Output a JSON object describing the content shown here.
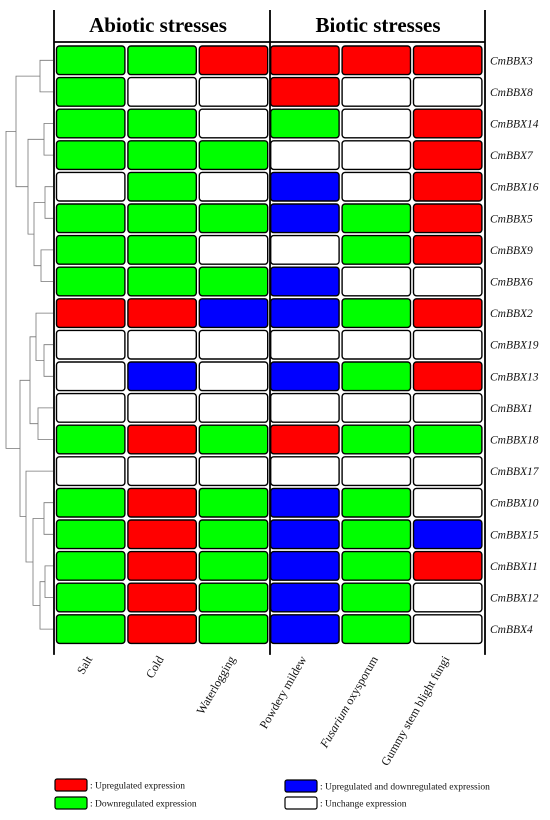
{
  "chart_data": {
    "type": "heatmap",
    "group_headers": [
      "Abiotic stresses",
      "Biotic stresses"
    ],
    "conditions": [
      "Salt",
      "Cold",
      "Waterlogging",
      "Powdery mildew",
      "Fusarium oxysporum",
      "Gummy stem blight fungi"
    ],
    "genes": [
      "CmBBX3",
      "CmBBX8",
      "CmBBX14",
      "CmBBX7",
      "CmBBX16",
      "CmBBX5",
      "CmBBX9",
      "CmBBX6",
      "CmBBX2",
      "CmBBX19",
      "CmBBX13",
      "CmBBX1",
      "CmBBX18",
      "CmBBX17",
      "CmBBX10",
      "CmBBX15",
      "CmBBX11",
      "CmBBX12",
      "CmBBX4"
    ],
    "values": [
      [
        "D",
        "D",
        "U",
        "U",
        "U",
        "U"
      ],
      [
        "D",
        "N",
        "N",
        "U",
        "N",
        "N"
      ],
      [
        "D",
        "D",
        "N",
        "D",
        "N",
        "U"
      ],
      [
        "D",
        "D",
        "D",
        "N",
        "N",
        "U"
      ],
      [
        "N",
        "D",
        "N",
        "B",
        "N",
        "U"
      ],
      [
        "D",
        "D",
        "D",
        "B",
        "D",
        "U"
      ],
      [
        "D",
        "D",
        "N",
        "N",
        "D",
        "U"
      ],
      [
        "D",
        "D",
        "D",
        "B",
        "N",
        "N"
      ],
      [
        "U",
        "U",
        "B",
        "B",
        "D",
        "U"
      ],
      [
        "N",
        "N",
        "N",
        "N",
        "N",
        "N"
      ],
      [
        "N",
        "B",
        "N",
        "B",
        "D",
        "U"
      ],
      [
        "N",
        "N",
        "N",
        "N",
        "N",
        "N"
      ],
      [
        "D",
        "U",
        "D",
        "U",
        "D",
        "D"
      ],
      [
        "N",
        "N",
        "N",
        "N",
        "N",
        "N"
      ],
      [
        "D",
        "U",
        "D",
        "B",
        "D",
        "N"
      ],
      [
        "D",
        "U",
        "D",
        "B",
        "D",
        "B"
      ],
      [
        "D",
        "U",
        "D",
        "B",
        "D",
        "U"
      ],
      [
        "D",
        "U",
        "D",
        "B",
        "D",
        "N"
      ],
      [
        "D",
        "U",
        "D",
        "B",
        "D",
        "N"
      ]
    ],
    "colors": {
      "U": "#ff0000",
      "D": "#00ff00",
      "B": "#0000ff",
      "N": "#ffffff"
    },
    "legend": [
      {
        "code": "U",
        "label": ": Upregulated expression"
      },
      {
        "code": "D",
        "label": ": Downregulated expression"
      },
      {
        "code": "B",
        "label": ": Upregulated and downregulated expression"
      },
      {
        "code": "N",
        "label": ": Unchange expression"
      }
    ],
    "dendrogram": "left"
  }
}
